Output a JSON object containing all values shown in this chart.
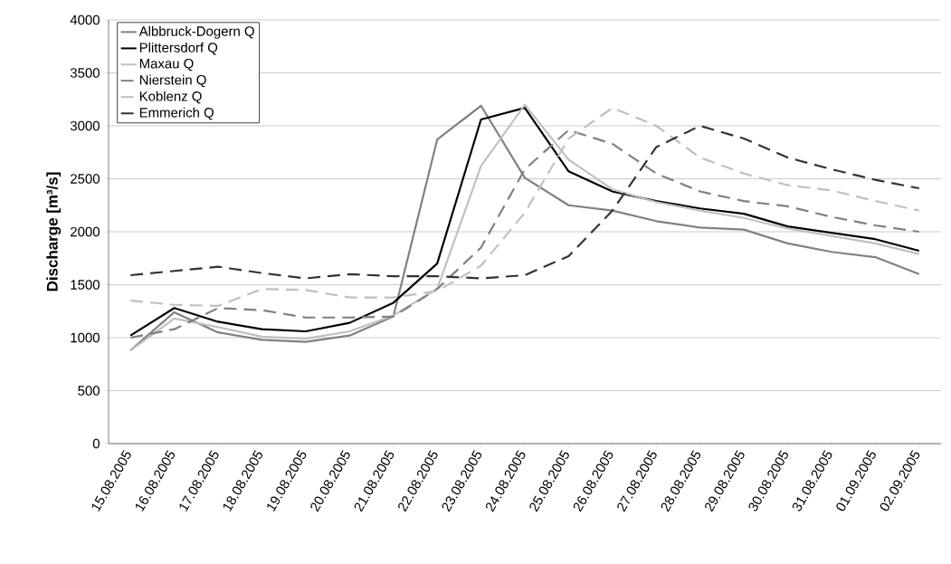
{
  "chart_data": {
    "type": "line",
    "ylabel": "Discharge [m³/s]",
    "categories": [
      "15.08.2005",
      "16.08.2005",
      "17.08.2005",
      "18.08.2005",
      "19.08.2005",
      "20.08.2005",
      "21.08.2005",
      "22.08.2005",
      "23.08.2005",
      "24.08.2005",
      "25.08.2005",
      "26.08.2005",
      "27.08.2005",
      "28.08.2005",
      "29.08.2005",
      "30.08.2005",
      "31.08.2005",
      "01.09.2005",
      "02.09.2005"
    ],
    "series": [
      {
        "name": "Albbruck-Dogern Q",
        "color": "#808080",
        "line_style": "solid",
        "values": [
          880,
          1240,
          1050,
          980,
          960,
          1020,
          1200,
          2870,
          3190,
          2510,
          2250,
          2200,
          2100,
          2040,
          2020,
          1890,
          1810,
          1760,
          1600
        ]
      },
      {
        "name": "Plittersdorf Q",
        "color": "#000000",
        "line_style": "solid",
        "values": [
          1020,
          1280,
          1150,
          1080,
          1060,
          1140,
          1330,
          1700,
          3060,
          3170,
          2570,
          2380,
          2290,
          2220,
          2170,
          2050,
          1990,
          1930,
          1820
        ]
      },
      {
        "name": "Maxau Q",
        "color": "#c0c0c0",
        "line_style": "solid",
        "values": [
          880,
          1180,
          1100,
          1010,
          990,
          1060,
          1210,
          1460,
          2620,
          3200,
          2680,
          2400,
          2280,
          2200,
          2130,
          2030,
          1960,
          1890,
          1790
        ]
      },
      {
        "name": "Nierstein Q",
        "color": "#808080",
        "line_style": "dashed",
        "values": [
          1000,
          1080,
          1280,
          1260,
          1190,
          1190,
          1200,
          1460,
          1850,
          2590,
          2960,
          2830,
          2550,
          2380,
          2290,
          2240,
          2140,
          2060,
          2000
        ]
      },
      {
        "name": "Koblenz Q",
        "color": "#c0c0c0",
        "line_style": "dashed",
        "values": [
          1350,
          1310,
          1300,
          1460,
          1450,
          1380,
          1380,
          1440,
          1680,
          2180,
          2880,
          3170,
          3000,
          2700,
          2550,
          2440,
          2390,
          2290,
          2200
        ]
      },
      {
        "name": "Emmerich Q",
        "color": "#333333",
        "line_style": "dashed",
        "values": [
          1590,
          1630,
          1670,
          1610,
          1560,
          1600,
          1580,
          1580,
          1560,
          1590,
          1770,
          2200,
          2800,
          3000,
          2880,
          2700,
          2590,
          2490,
          2410
        ]
      }
    ],
    "ylim": [
      0,
      4000
    ],
    "yticks": [
      0,
      500,
      1000,
      1500,
      2000,
      2500,
      3000,
      3500,
      4000
    ],
    "grid": "y",
    "legend": "top left",
    "marker": "none"
  }
}
